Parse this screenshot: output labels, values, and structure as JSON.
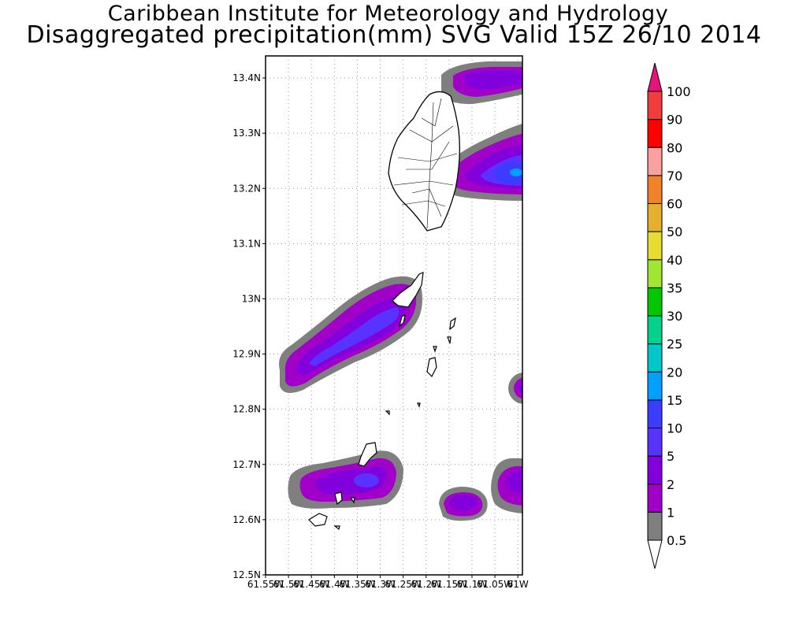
{
  "header": {
    "line1": "Caribbean Institute for Meteorology and Hydrology",
    "line2": "Disaggregated precipitation(mm) SVG Valid 15Z 26/10 2014"
  },
  "map": {
    "lat_labels": [
      "13.4N",
      "13.3N",
      "13.2N",
      "13.1N",
      "13N",
      "12.9N",
      "12.8N",
      "12.7N",
      "12.6N",
      "12.5N"
    ],
    "lon_labels": [
      "61.55W",
      "61.5W",
      "61.45W",
      "61.4W",
      "61.35W",
      "61.3W",
      "61.25W",
      "61.2W",
      "61.15W",
      "61.1W",
      "61.05W",
      "61W"
    ],
    "lat_range": [
      12.5,
      13.44
    ],
    "lon_range": [
      -61.55,
      -60.99
    ]
  },
  "colorbar": {
    "levels": [
      {
        "label": "0.5",
        "color": "#ffffff"
      },
      {
        "label": "1",
        "color": "#7f7f7f"
      },
      {
        "label": "2",
        "color": "#a000c8"
      },
      {
        "label": "5",
        "color": "#8200dc"
      },
      {
        "label": "10",
        "color": "#5a32ff"
      },
      {
        "label": "15",
        "color": "#3c3cff"
      },
      {
        "label": "20",
        "color": "#00a0ff"
      },
      {
        "label": "25",
        "color": "#00c8c8"
      },
      {
        "label": "30",
        "color": "#00d28c"
      },
      {
        "label": "35",
        "color": "#00c800"
      },
      {
        "label": "40",
        "color": "#a0e632"
      },
      {
        "label": "50",
        "color": "#e6dc32"
      },
      {
        "label": "60",
        "color": "#e6af2d"
      },
      {
        "label": "70",
        "color": "#f08228"
      },
      {
        "label": "80",
        "color": "#faa0a0"
      },
      {
        "label": "90",
        "color": "#ff0000"
      },
      {
        "label": "100",
        "color": "#f03c3c"
      }
    ],
    "top_color": "#e6147a"
  }
}
